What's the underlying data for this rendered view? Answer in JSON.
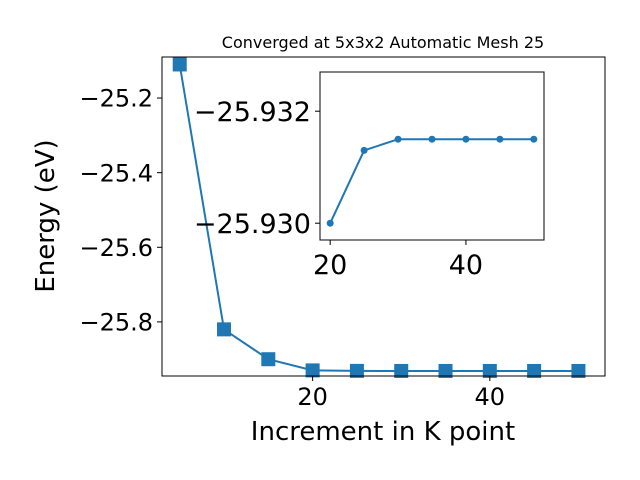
{
  "chart_data": [
    {
      "type": "line",
      "title": "Converged at 5x3x2 Automatic Mesh 25",
      "xlabel": "Increment in K point",
      "ylabel": "Energy (eV)",
      "xlim": [
        3,
        53
      ],
      "ylim": [
        -25.945,
        -25.09
      ],
      "xticks": [
        20,
        40
      ],
      "xtick_labels": [
        "20",
        "40"
      ],
      "yticks": [
        -25.2,
        -25.4,
        -25.6,
        -25.8
      ],
      "ytick_labels": [
        "−25.2",
        "−25.4",
        "−25.6",
        "−25.8"
      ],
      "marker": "square",
      "color": "#1f77b4",
      "grid": false,
      "series": [
        {
          "x": [
            5,
            10,
            15,
            20,
            25,
            30,
            35,
            40,
            45,
            50
          ],
          "values": [
            -25.11,
            -25.82,
            -25.9,
            -25.93,
            -25.9313,
            -25.9315,
            -25.9315,
            -25.9315,
            -25.9315,
            -25.9315
          ]
        }
      ]
    },
    {
      "type": "line",
      "title": "",
      "xlabel": "",
      "ylabel": "",
      "xlim": [
        18.5,
        51.5
      ],
      "ylim": [
        -25.9297,
        -25.9327
      ],
      "xticks": [
        20,
        40
      ],
      "xtick_labels": [
        "20",
        "40"
      ],
      "yticks": [
        -25.932,
        -25.93
      ],
      "ytick_labels": [
        "−25.932",
        "−25.930"
      ],
      "marker": "circle",
      "color": "#1f77b4",
      "grid": false,
      "series": [
        {
          "x": [
            20,
            25,
            30,
            35,
            40,
            45,
            50
          ],
          "values": [
            -25.93,
            -25.9313,
            -25.9315,
            -25.9315,
            -25.9315,
            -25.9315,
            -25.9315
          ]
        }
      ]
    }
  ]
}
